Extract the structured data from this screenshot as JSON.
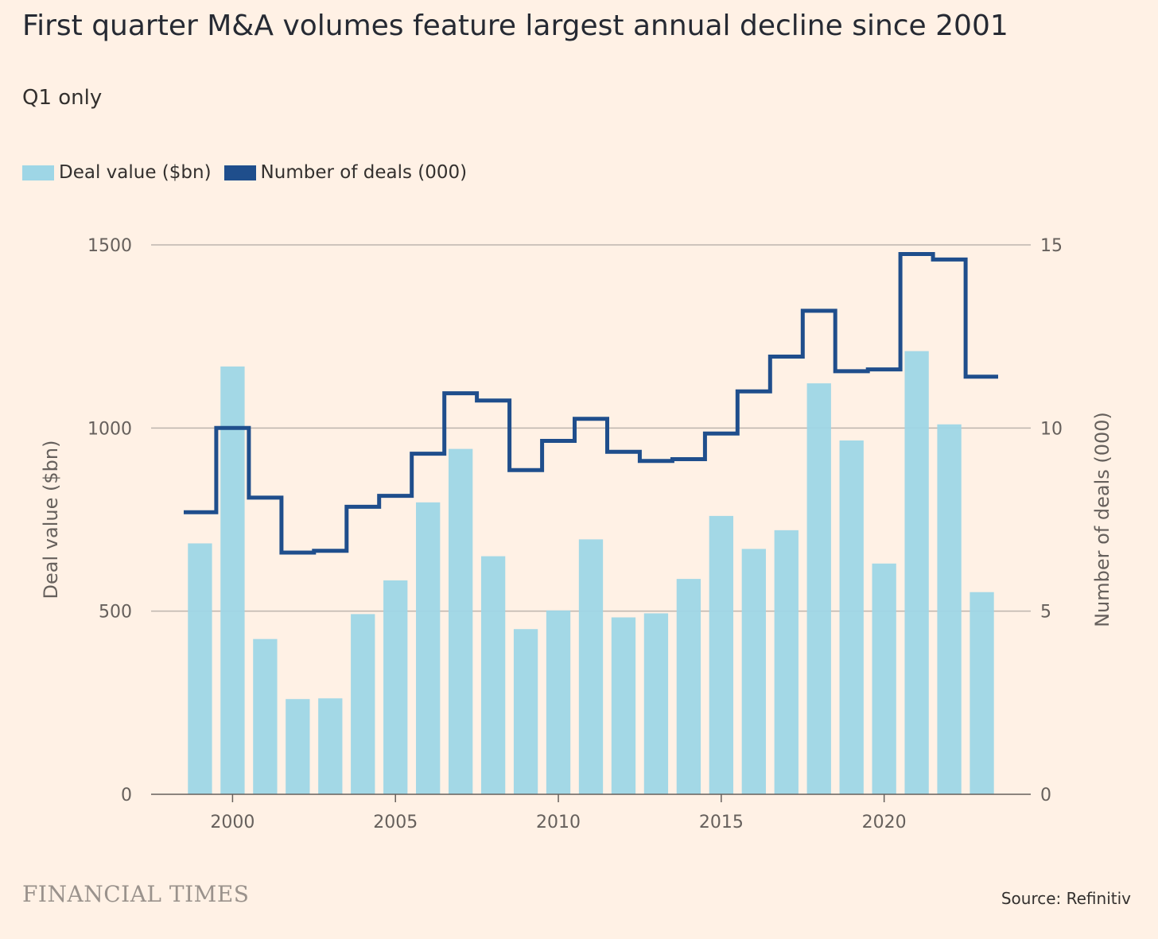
{
  "header": {
    "title": "First quarter M&A volumes feature largest annual decline since 2001",
    "subtitle": "Q1 only"
  },
  "legend": [
    {
      "label": "Deal value ($bn)",
      "color": "#9ED6E6"
    },
    {
      "label": "Number of deals (000)",
      "color": "#1F4E8C"
    }
  ],
  "footer": {
    "logo": "FINANCIAL TIMES",
    "source": "Source: Refinitiv"
  },
  "chart_data": {
    "type": "bar",
    "x": [
      1999,
      2000,
      2001,
      2002,
      2003,
      2004,
      2005,
      2006,
      2007,
      2008,
      2009,
      2010,
      2011,
      2012,
      2013,
      2014,
      2015,
      2016,
      2017,
      2018,
      2019,
      2020,
      2021,
      2022,
      2023
    ],
    "series": [
      {
        "name": "Deal value ($bn)",
        "kind": "bar",
        "axis": "left",
        "color": "#9ED6E6",
        "values": [
          685,
          1168,
          424,
          260,
          262,
          492,
          584,
          797,
          943,
          650,
          451,
          502,
          696,
          483,
          494,
          588,
          760,
          670,
          721,
          1122,
          966,
          630,
          1210,
          1010,
          552
        ]
      },
      {
        "name": "Number of deals (000)",
        "kind": "step-line",
        "axis": "right",
        "color": "#1F4E8C",
        "values": [
          7.7,
          10.0,
          8.1,
          6.6,
          6.65,
          7.85,
          8.15,
          9.3,
          10.95,
          10.75,
          8.85,
          9.65,
          10.25,
          9.35,
          9.1,
          9.15,
          9.85,
          11.0,
          11.95,
          13.2,
          11.55,
          11.6,
          14.75,
          14.6,
          11.4
        ]
      }
    ],
    "xticks": [
      2000,
      2005,
      2010,
      2015,
      2020
    ],
    "yleft": {
      "label": "Deal value ($bn)",
      "ticks": [
        0,
        500,
        1000,
        1500
      ],
      "lim": [
        0,
        1500
      ]
    },
    "yright": {
      "label": "Number of deals (000)",
      "ticks": [
        0,
        5,
        10,
        15
      ],
      "lim": [
        0,
        15
      ]
    },
    "xlim": [
      1997.5,
      2024.5
    ],
    "grid": true,
    "legend_position": "top-left"
  }
}
